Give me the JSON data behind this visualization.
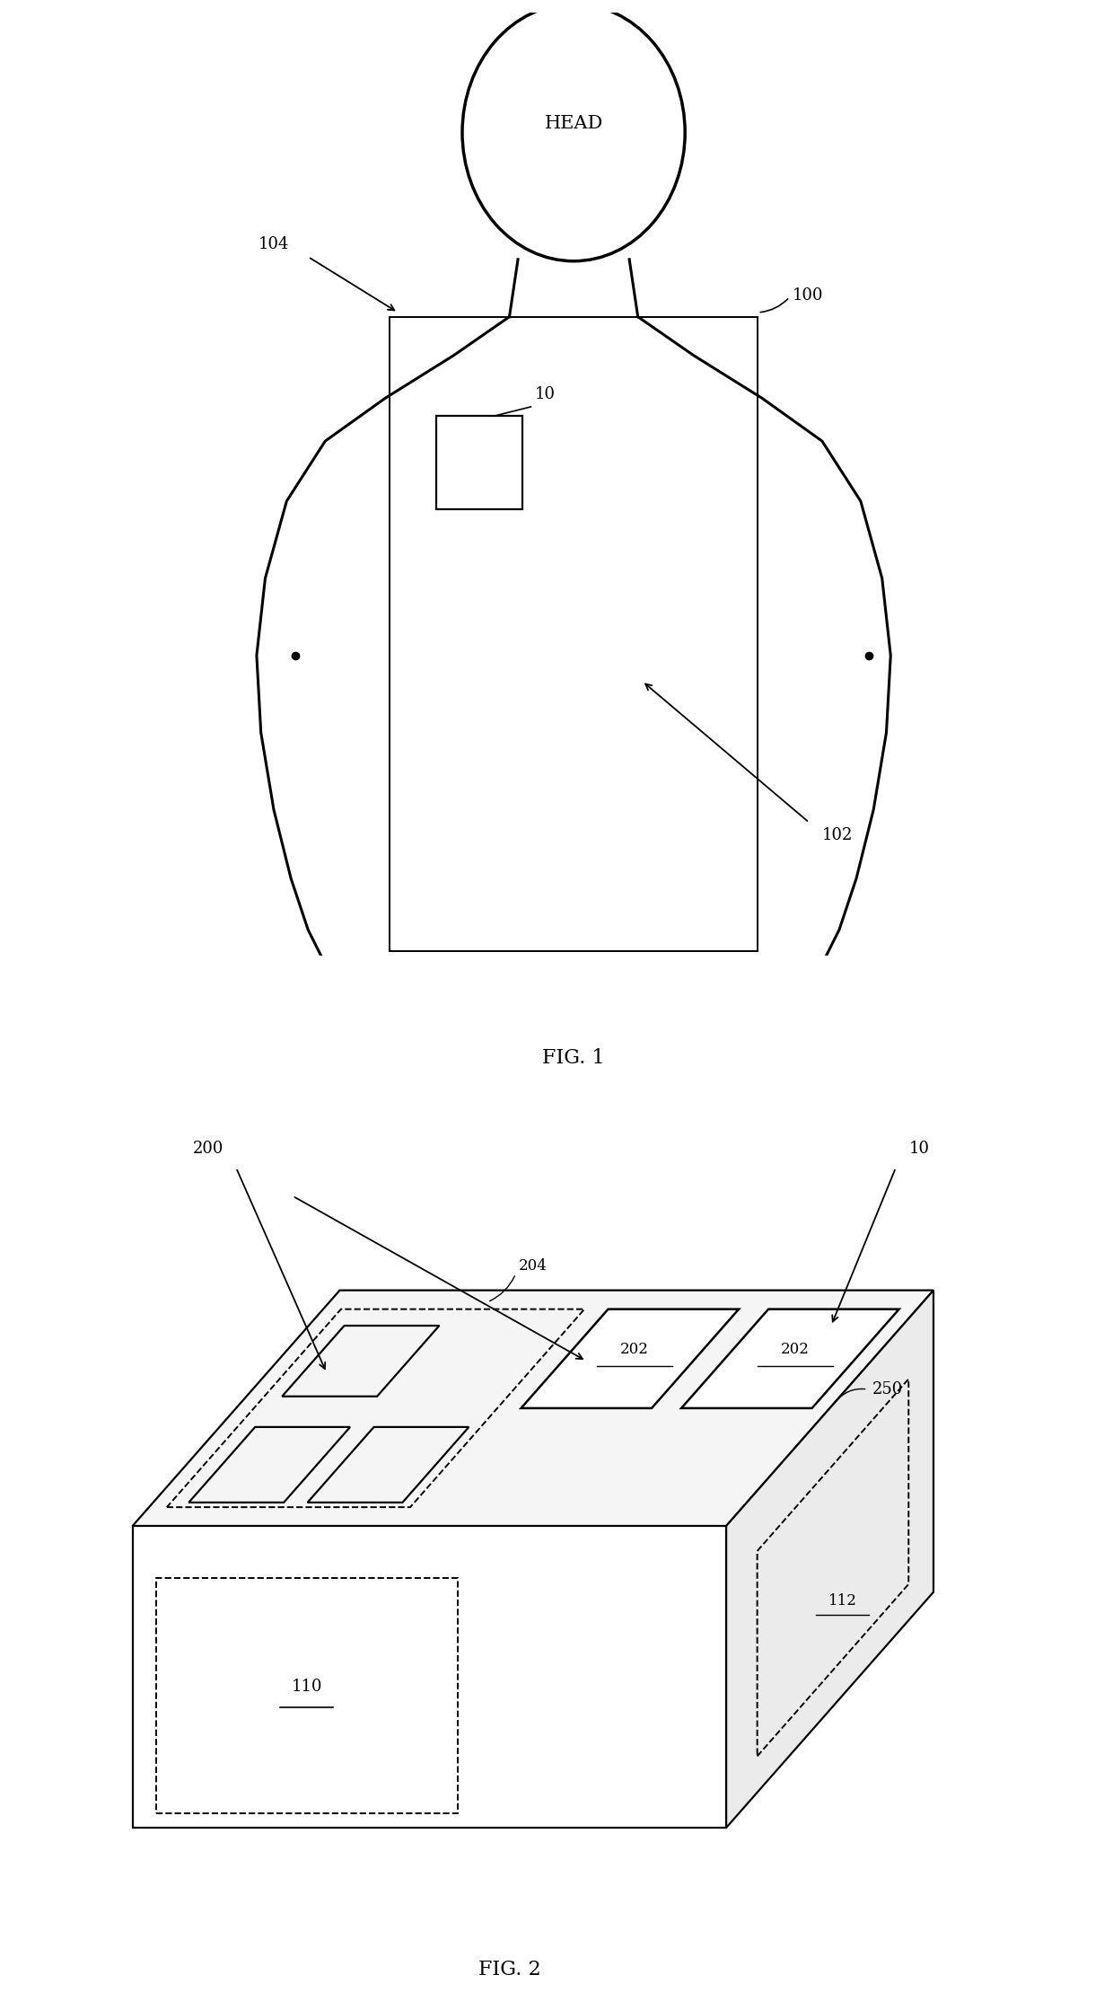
{
  "fig_width": 12.4,
  "fig_height": 22.38,
  "bg_color": "#ffffff",
  "line_color": "#000000",
  "fig1_title": "FIG. 1",
  "fig2_title": "FIG. 2",
  "labels": {
    "HEAD": "HEAD",
    "100": "100",
    "102": "102",
    "104": "104",
    "10_fig1": "10",
    "10_fig2": "10",
    "200": "200",
    "202a": "202",
    "202b": "202",
    "204": "204",
    "110": "110",
    "112": "112",
    "250": "250"
  }
}
